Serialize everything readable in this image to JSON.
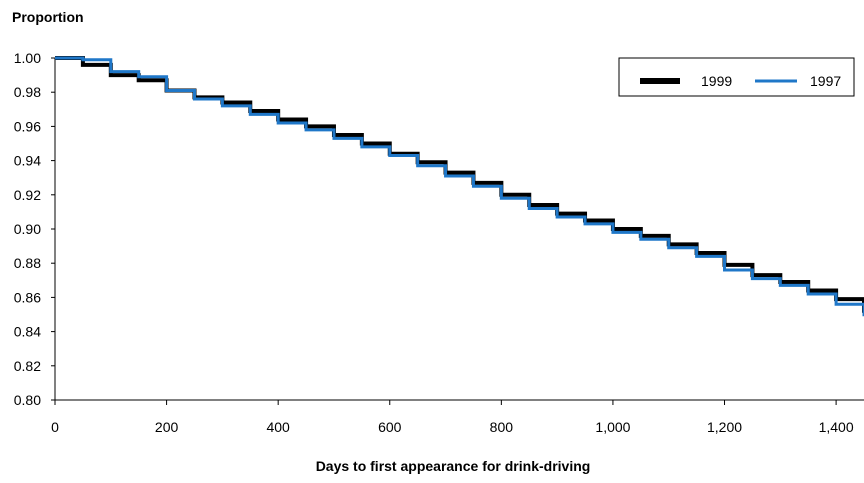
{
  "chart_data": {
    "type": "line",
    "title": "",
    "ylabel": "Proportion",
    "xlabel": "Days to first appearance for drink-driving",
    "xlim": [
      0,
      1450
    ],
    "ylim": [
      0.8,
      1.0
    ],
    "x_ticks": [
      0,
      200,
      400,
      600,
      800,
      1000,
      1200,
      1400
    ],
    "x_tick_labels": [
      "0",
      "200",
      "400",
      "600",
      "800",
      "1,000",
      "1,200",
      "1,400"
    ],
    "y_ticks": [
      0.8,
      0.82,
      0.84,
      0.86,
      0.88,
      0.9,
      0.92,
      0.94,
      0.96,
      0.98,
      1.0
    ],
    "y_tick_labels": [
      "0.80",
      "0.82",
      "0.84",
      "0.86",
      "0.88",
      "0.90",
      "0.92",
      "0.94",
      "0.96",
      "0.98",
      "1.00"
    ],
    "grid": false,
    "legend": "top-right",
    "series": [
      {
        "name": "1999",
        "color": "#000000",
        "x": [
          0,
          50,
          100,
          150,
          200,
          250,
          300,
          350,
          400,
          450,
          500,
          550,
          600,
          650,
          700,
          750,
          800,
          850,
          900,
          950,
          1000,
          1050,
          1100,
          1150,
          1200,
          1250,
          1300,
          1350,
          1400,
          1450
        ],
        "y": [
          1.0,
          0.996,
          0.99,
          0.987,
          0.981,
          0.977,
          0.974,
          0.969,
          0.964,
          0.96,
          0.955,
          0.95,
          0.944,
          0.939,
          0.933,
          0.927,
          0.92,
          0.914,
          0.909,
          0.905,
          0.9,
          0.896,
          0.891,
          0.886,
          0.879,
          0.873,
          0.869,
          0.864,
          0.859,
          0.851
        ]
      },
      {
        "name": "1997",
        "color": "#1f77c8",
        "x": [
          0,
          50,
          100,
          150,
          200,
          250,
          300,
          350,
          400,
          450,
          500,
          550,
          600,
          650,
          700,
          750,
          800,
          850,
          900,
          950,
          1000,
          1050,
          1100,
          1150,
          1200,
          1250,
          1300,
          1350,
          1400,
          1450
        ],
        "y": [
          1.0,
          0.999,
          0.992,
          0.989,
          0.981,
          0.976,
          0.972,
          0.967,
          0.962,
          0.958,
          0.953,
          0.948,
          0.943,
          0.937,
          0.931,
          0.925,
          0.918,
          0.912,
          0.907,
          0.903,
          0.898,
          0.894,
          0.889,
          0.884,
          0.876,
          0.871,
          0.867,
          0.862,
          0.856,
          0.849
        ]
      }
    ]
  }
}
